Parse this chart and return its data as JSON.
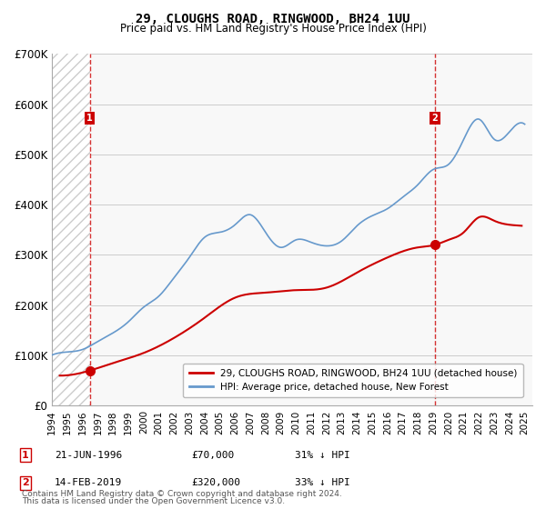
{
  "title1": "29, CLOUGHS ROAD, RINGWOOD, BH24 1UU",
  "title2": "Price paid vs. HM Land Registry's House Price Index (HPI)",
  "ylabel": "",
  "xlabel": "",
  "ylim": [
    0,
    700000
  ],
  "yticks": [
    0,
    100000,
    200000,
    300000,
    400000,
    500000,
    600000,
    700000
  ],
  "ytick_labels": [
    "£0",
    "£100K",
    "£200K",
    "£300K",
    "£400K",
    "£500K",
    "£600K",
    "£700K"
  ],
  "xmin": 1994.0,
  "xmax": 2025.5,
  "red_color": "#cc0000",
  "blue_color": "#6699cc",
  "legend_red": "29, CLOUGHS ROAD, RINGWOOD, BH24 1UU (detached house)",
  "legend_blue": "HPI: Average price, detached house, New Forest",
  "point1_x": 1996.47,
  "point1_y": 70000,
  "point1_label": "1",
  "point1_info": "21-JUN-1996    £70,000    31% ↓ HPI",
  "point2_x": 2019.12,
  "point2_y": 320000,
  "point2_label": "2",
  "point2_info": "14-FEB-2019    £320,000    33% ↓ HPI",
  "footnote1": "Contains HM Land Registry data © Crown copyright and database right 2024.",
  "footnote2": "This data is licensed under the Open Government Licence v3.0.",
  "hatch_color": "#cccccc",
  "bg_color": "#ffffff",
  "plot_bg": "#f8f8f8",
  "hpi_line": {
    "years": [
      1994,
      1995,
      1996,
      1997,
      1998,
      1999,
      2000,
      2001,
      2002,
      2003,
      2004,
      2005,
      2006,
      2007,
      2008,
      2009,
      2010,
      2011,
      2012,
      2013,
      2014,
      2015,
      2016,
      2017,
      2018,
      2019,
      2020,
      2021,
      2022,
      2023,
      2024,
      2025
    ],
    "values": [
      101000,
      107000,
      112000,
      128000,
      145000,
      167000,
      196000,
      218000,
      255000,
      295000,
      335000,
      345000,
      360000,
      380000,
      345000,
      315000,
      330000,
      325000,
      318000,
      328000,
      358000,
      378000,
      392000,
      415000,
      440000,
      470000,
      480000,
      530000,
      570000,
      530000,
      545000,
      560000
    ]
  },
  "price_line": {
    "years": [
      1996.47,
      2019.12
    ],
    "values": [
      70000,
      320000
    ]
  }
}
